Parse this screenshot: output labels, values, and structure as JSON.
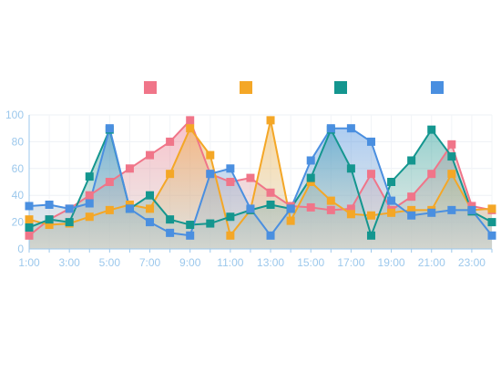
{
  "chart_data": {
    "type": "area",
    "title": "",
    "xlabel": "",
    "ylabel": "",
    "ylim": [
      0,
      100
    ],
    "yticks": [
      "0",
      "20",
      "40",
      "60",
      "80",
      "100"
    ],
    "categories": [
      "1:00",
      "2:00",
      "3:00",
      "4:00",
      "5:00",
      "6:00",
      "7:00",
      "8:00",
      "9:00",
      "10:00",
      "11:00",
      "12:00",
      "13:00",
      "14:00",
      "15:00",
      "16:00",
      "17:00",
      "18:00",
      "19:00",
      "20:00",
      "21:00",
      "22:00",
      "23:00",
      "24:00"
    ],
    "xtick_labels": [
      "1:00",
      "3:00",
      "5:00",
      "7:00",
      "9:00",
      "11:00",
      "13:00",
      "15:00",
      "17:00",
      "19:00",
      "21:00",
      "23:00"
    ],
    "legend_position": "top",
    "grid": true,
    "series": [
      {
        "color": "#f07589",
        "values": [
          10,
          22,
          30,
          40,
          50,
          60,
          70,
          80,
          96,
          56,
          50,
          53,
          42,
          32,
          31,
          29,
          30,
          56,
          29,
          39,
          56,
          78,
          32,
          29
        ]
      },
      {
        "color": "#f4a727",
        "values": [
          22,
          18,
          19,
          24,
          29,
          33,
          30,
          56,
          90,
          70,
          10,
          29,
          96,
          21,
          50,
          36,
          26,
          25,
          27,
          29,
          29,
          56,
          29,
          30
        ]
      },
      {
        "color": "#14968f",
        "values": [
          16,
          22,
          20,
          54,
          89,
          30,
          40,
          22,
          18,
          19,
          24,
          29,
          33,
          30,
          53,
          89,
          60,
          10,
          50,
          66,
          89,
          69,
          28,
          20
        ]
      },
      {
        "color": "#4a8fe0",
        "values": [
          32,
          33,
          30,
          34,
          90,
          30,
          20,
          12,
          10,
          56,
          60,
          30,
          10,
          30,
          66,
          90,
          90,
          80,
          36,
          25,
          27,
          29,
          29,
          10
        ]
      }
    ]
  }
}
